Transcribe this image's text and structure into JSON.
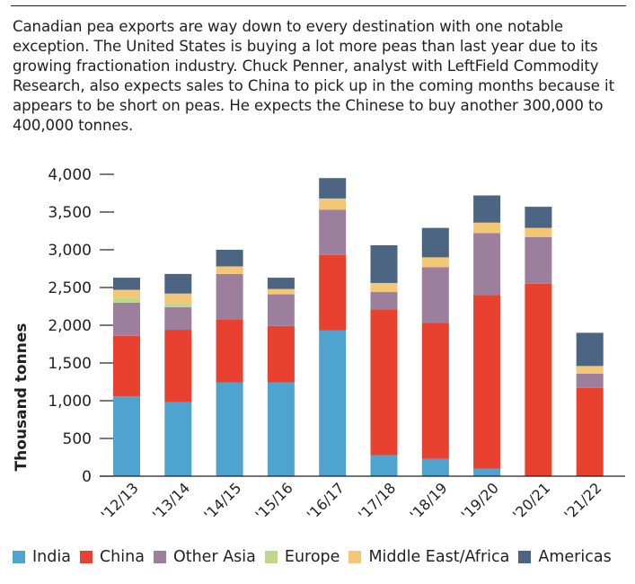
{
  "intro_text": "Canadian pea exports are way down to every destination with one notable exception. The United States is buying a lot more peas than last year due to its growing fractionation industry. Chuck Penner, analyst with LeftField Commodity Research, also expects sales to China to pick up in the coming months because it appears to be short on peas. He expects the Chinese to buy another 300,000 to 400,000 tonnes.",
  "chart_data": {
    "type": "bar",
    "stacked": true,
    "title": "",
    "xlabel": "",
    "ylabel": "Thousand tonnes",
    "ylim": [
      0,
      4000
    ],
    "yticks": [
      0,
      500,
      1000,
      1500,
      2000,
      2500,
      3000,
      3500,
      4000
    ],
    "ytick_labels": [
      "0",
      "500",
      "1,000",
      "1,500",
      "2,000",
      "2,500",
      "3,000",
      "3,500",
      "4,000"
    ],
    "categories": [
      "'12/13",
      "'13/14",
      "'14/15",
      "'15/16",
      "'16/17",
      "'17/18",
      "'18/19",
      "'19/20",
      "'20/21",
      "'21/22"
    ],
    "legend_position": "bottom",
    "series": [
      {
        "name": "India",
        "color": "#4ea3cf",
        "values": [
          1060,
          980,
          1240,
          1240,
          1930,
          280,
          230,
          100,
          0,
          0
        ]
      },
      {
        "name": "China",
        "color": "#e8412f",
        "values": [
          800,
          960,
          840,
          750,
          1000,
          1930,
          1800,
          2300,
          2550,
          1170
        ]
      },
      {
        "name": "Other Asia",
        "color": "#9c7f9d",
        "values": [
          440,
          300,
          600,
          420,
          600,
          230,
          740,
          820,
          620,
          190
        ]
      },
      {
        "name": "Europe",
        "color": "#bfd68c",
        "values": [
          60,
          50,
          0,
          0,
          0,
          0,
          0,
          0,
          0,
          0
        ]
      },
      {
        "name": "Middle East/Africa",
        "color": "#f3c775",
        "values": [
          110,
          130,
          100,
          70,
          150,
          120,
          130,
          140,
          120,
          100
        ]
      },
      {
        "name": "Americas",
        "color": "#4c6582",
        "values": [
          160,
          260,
          220,
          150,
          270,
          500,
          390,
          360,
          280,
          440
        ]
      }
    ]
  }
}
